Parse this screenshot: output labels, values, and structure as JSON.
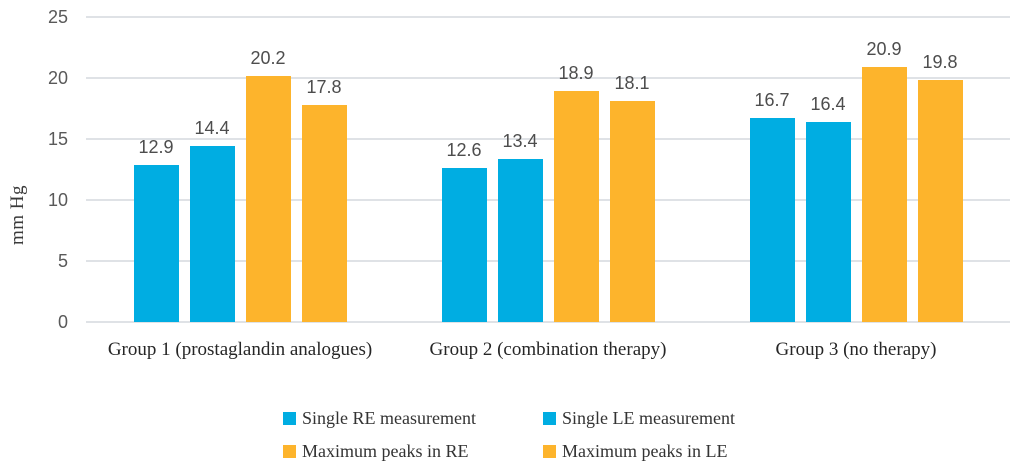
{
  "chart_data": {
    "type": "bar",
    "ylabel": "mm Hg",
    "ylim": [
      0,
      25
    ],
    "yticks": [
      0,
      5,
      10,
      15,
      20,
      25
    ],
    "grid": true,
    "legend_position": "bottom",
    "categories": [
      "Group 1 (prostaglandin analogues)",
      "Group 2 (combination therapy)",
      "Group 3 (no therapy)"
    ],
    "series": [
      {
        "name": "Single RE measurement",
        "color": "#00ADE2",
        "values": [
          12.9,
          12.6,
          16.7
        ]
      },
      {
        "name": "Single LE measurement",
        "color": "#00ADE2",
        "values": [
          14.4,
          13.4,
          16.4
        ]
      },
      {
        "name": "Maximum peaks in RE",
        "color": "#FDB42C",
        "values": [
          20.2,
          18.9,
          20.9
        ]
      },
      {
        "name": "Maximum peaks in LE",
        "color": "#FDB42C",
        "values": [
          17.8,
          18.1,
          19.8
        ]
      }
    ],
    "colors": {
      "bar_blue": "#00ADE2",
      "bar_orange": "#FDB42C",
      "gridline": "#DFE2E6",
      "tick_label": "#595959",
      "data_label": "#4D4D4D",
      "category_label": "#262626",
      "legend_label": "#333333"
    }
  }
}
